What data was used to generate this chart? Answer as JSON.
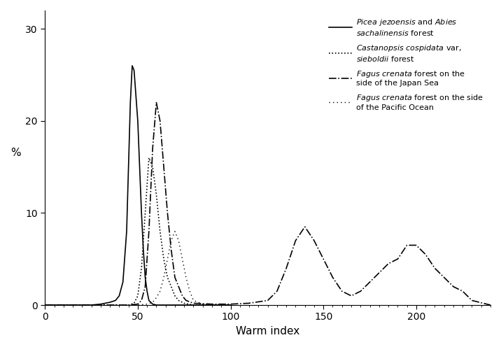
{
  "title": "",
  "xlabel": "Warm index",
  "ylabel": "%",
  "xlim": [
    0,
    240
  ],
  "ylim": [
    0,
    32
  ],
  "xticks": [
    0,
    50,
    100,
    150,
    200
  ],
  "yticks": [
    0,
    10,
    20,
    30
  ],
  "background_color": "#ffffff",
  "series": {
    "solid": {
      "x": [
        0,
        25,
        30,
        35,
        38,
        40,
        42,
        44,
        45,
        46,
        47,
        48,
        50,
        52,
        53,
        54,
        55,
        56,
        58,
        60,
        65,
        70,
        80,
        100
      ],
      "y": [
        0,
        0,
        0.1,
        0.3,
        0.5,
        1.0,
        2.5,
        8,
        15,
        22,
        26,
        25.5,
        20,
        10,
        6,
        3,
        1.5,
        0.5,
        0.1,
        0,
        0,
        0,
        0,
        0
      ]
    },
    "dotted_dense": {
      "x": [
        0,
        45,
        48,
        50,
        52,
        54,
        56,
        58,
        60,
        62,
        64,
        66,
        68,
        70,
        72,
        75,
        80,
        90,
        100
      ],
      "y": [
        0,
        0,
        0.2,
        1.0,
        4,
        10,
        16,
        15,
        12,
        8,
        5,
        3,
        2,
        1,
        0.5,
        0.2,
        0,
        0,
        0
      ]
    },
    "dash_dot": {
      "x": [
        0,
        45,
        50,
        52,
        54,
        56,
        58,
        60,
        62,
        64,
        66,
        68,
        70,
        72,
        74,
        76,
        80,
        90,
        100,
        110,
        120,
        125,
        130,
        135,
        140,
        145,
        150,
        155,
        160,
        165,
        170,
        175,
        180,
        185,
        190,
        195,
        200,
        205,
        210,
        215,
        220,
        225,
        230,
        240
      ],
      "y": [
        0,
        0,
        0.1,
        0.5,
        2,
        8,
        17,
        22,
        20,
        15,
        10,
        6,
        3,
        2,
        1,
        0.5,
        0.2,
        0.1,
        0.1,
        0.2,
        0.5,
        1.5,
        4,
        7,
        8.5,
        7,
        5,
        3,
        1.5,
        1,
        1.5,
        2.5,
        3.5,
        4.5,
        5,
        6.5,
        6.5,
        5.5,
        4,
        3,
        2,
        1.5,
        0.5,
        0
      ]
    },
    "dotted_sparse": {
      "x": [
        0,
        50,
        55,
        58,
        60,
        62,
        64,
        66,
        68,
        70,
        72,
        74,
        76,
        78,
        80,
        85,
        90,
        100
      ],
      "y": [
        0,
        0,
        0.1,
        0.3,
        0.8,
        1.5,
        3,
        5,
        7,
        8,
        7,
        5,
        3,
        1.5,
        0.5,
        0.1,
        0,
        0
      ]
    }
  },
  "legend": {
    "label1": "$\\it{Picea\\ jezoensis}$ and $\\it{Abies}$\n$\\it{sachalinensis}$ forest",
    "label2": "$\\it{Castanopsis\\ cospidata}$ var,\n$\\it{sieboldii}$ forest",
    "label3": "$\\it{Fagus\\ crenata}$ forest on the\nside of the Japan Sea",
    "label4": "$\\it{Fagus\\ crenata}$ forest on the side\nof the Pacific Ocean"
  }
}
